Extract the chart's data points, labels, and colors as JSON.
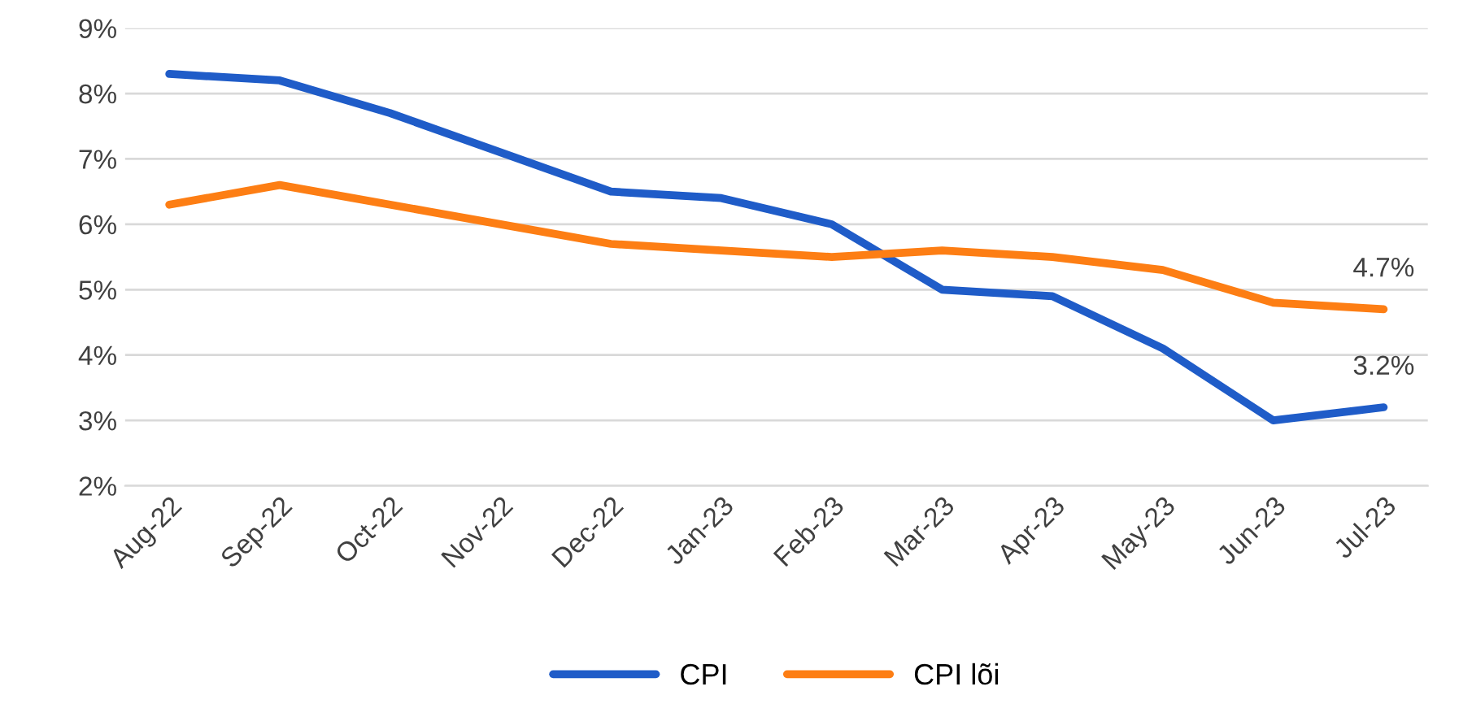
{
  "chart_data": {
    "type": "line",
    "categories": [
      "Aug-22",
      "Sep-22",
      "Oct-22",
      "Nov-22",
      "Dec-22",
      "Jan-23",
      "Feb-23",
      "Mar-23",
      "Apr-23",
      "May-23",
      "Jun-23",
      "Jul-23"
    ],
    "series": [
      {
        "name": "CPI",
        "color": "#1f5cc8",
        "values": [
          8.3,
          8.2,
          7.7,
          7.1,
          6.5,
          6.4,
          6.0,
          5.0,
          4.9,
          4.1,
          3.0,
          3.2
        ],
        "value_labels": [
          null,
          null,
          null,
          null,
          null,
          null,
          null,
          null,
          null,
          null,
          null,
          "3.2%"
        ]
      },
      {
        "name": "CPI lõi",
        "color": "#fd7e14",
        "values": [
          6.3,
          6.6,
          6.3,
          6.0,
          5.7,
          5.6,
          5.5,
          5.6,
          5.5,
          5.3,
          4.8,
          4.7
        ],
        "value_labels": [
          null,
          null,
          null,
          null,
          null,
          null,
          null,
          null,
          null,
          null,
          null,
          "4.7%"
        ]
      }
    ],
    "ylim": [
      2,
      9
    ],
    "yticks": [
      {
        "value": 2,
        "label": "2%"
      },
      {
        "value": 3,
        "label": "3%"
      },
      {
        "value": 4,
        "label": "4%"
      },
      {
        "value": 5,
        "label": "5%"
      },
      {
        "value": 6,
        "label": "6%"
      },
      {
        "value": 7,
        "label": "7%"
      },
      {
        "value": 8,
        "label": "8%"
      },
      {
        "value": 9,
        "label": "9%"
      }
    ],
    "grid": "y",
    "legend": "bottom",
    "marker": "none",
    "line_style": "solid"
  }
}
